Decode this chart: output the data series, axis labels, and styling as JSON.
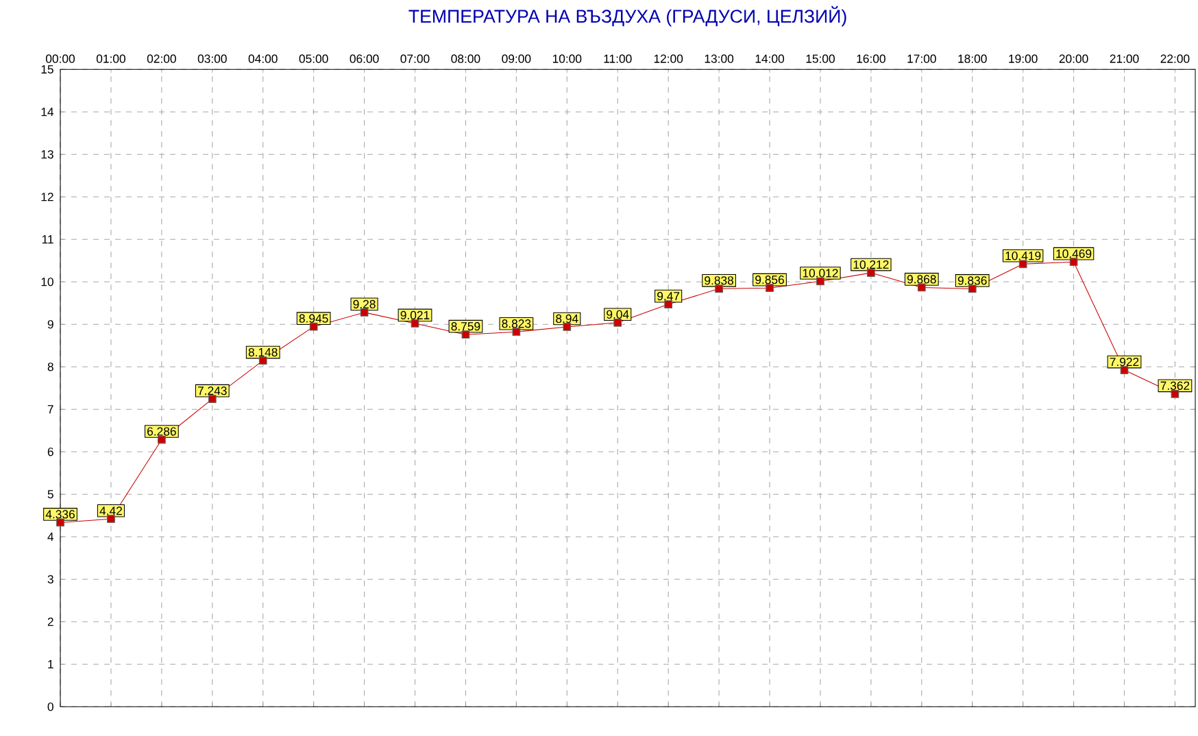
{
  "chart_data": {
    "type": "line",
    "title": "ТЕМПЕРАТУРА НА ВЪЗДУХА  (ГРАДУСИ, ЦЕЛЗИЙ)",
    "categories": [
      "00:00",
      "01:00",
      "02:00",
      "03:00",
      "04:00",
      "05:00",
      "06:00",
      "07:00",
      "08:00",
      "09:00",
      "10:00",
      "11:00",
      "12:00",
      "13:00",
      "14:00",
      "15:00",
      "16:00",
      "17:00",
      "18:00",
      "19:00",
      "20:00",
      "21:00",
      "22:00"
    ],
    "series": [
      {
        "color": "#cc0000",
        "values": [
          4.336,
          4.42,
          6.286,
          7.243,
          8.148,
          8.945,
          9.28,
          9.021,
          8.759,
          8.823,
          8.94,
          9.04,
          9.47,
          9.838,
          9.856,
          10.012,
          10.212,
          9.868,
          9.836,
          10.419,
          10.469,
          7.922,
          7.362
        ]
      }
    ],
    "ylim": [
      0,
      15
    ],
    "yticks": [
      0,
      1,
      2,
      3,
      4,
      5,
      6,
      7,
      8,
      9,
      10,
      11,
      12,
      13,
      14,
      15
    ],
    "grid": true,
    "marker": "square",
    "line_style": "solid",
    "data_labels": true
  }
}
